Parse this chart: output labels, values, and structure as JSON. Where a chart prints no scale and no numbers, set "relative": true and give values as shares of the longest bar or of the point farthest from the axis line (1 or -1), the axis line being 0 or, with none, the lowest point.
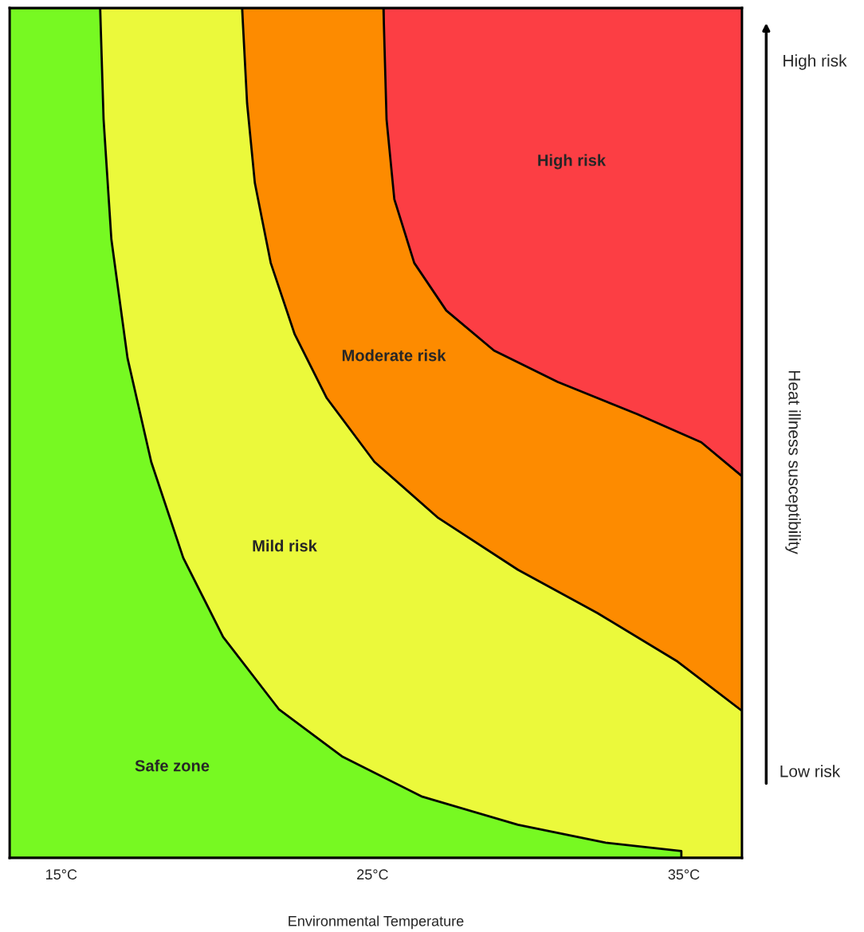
{
  "chart_data": {
    "type": "area",
    "relative": true,
    "xlabel": "Environmental Temperature",
    "ylabel": "Heat illness susceptibility",
    "xlim": [
      13.34,
      36.87
    ],
    "xticks": [
      {
        "value": 15,
        "label": "15°C"
      },
      {
        "value": 25,
        "label": "25°C"
      },
      {
        "value": 35,
        "label": "35°C"
      }
    ],
    "series": [
      {
        "color": "#fc3e44",
        "x": [
          25.35,
          36.87
        ],
        "values": [
          1,
          1
        ]
      },
      {
        "color": "#fd8b00",
        "x": [
          20.81,
          25.35,
          25.45,
          25.7,
          26.34,
          27.37,
          28.9,
          30.95,
          33.51,
          35.56,
          36.87
        ],
        "values": [
          1,
          1,
          0.869,
          0.775,
          0.7,
          0.644,
          0.597,
          0.56,
          0.522,
          0.489,
          0.449
        ]
      },
      {
        "color": "#ebf93b",
        "x": [
          16.25,
          20.81,
          20.97,
          21.22,
          21.73,
          22.5,
          23.53,
          25.06,
          27.11,
          29.67,
          32.23,
          34.8,
          36.87
        ],
        "values": [
          1,
          1,
          0.888,
          0.794,
          0.7,
          0.616,
          0.541,
          0.466,
          0.4,
          0.339,
          0.288,
          0.231,
          0.173
        ]
      },
      {
        "color": "#77f922",
        "x": [
          13.34,
          16.25,
          16.36,
          16.61,
          17.13,
          17.89,
          18.92,
          20.2,
          21.99,
          24.04,
          26.6,
          29.67,
          32.49,
          34.92
        ],
        "values": [
          1,
          1,
          0.869,
          0.728,
          0.588,
          0.466,
          0.353,
          0.26,
          0.175,
          0.119,
          0.072,
          0.039,
          0.018,
          0.008
        ]
      }
    ],
    "annotations": [
      "High risk",
      "Moderate risk",
      "Mild risk",
      "Safe zone",
      "High risk",
      "Low risk"
    ]
  }
}
